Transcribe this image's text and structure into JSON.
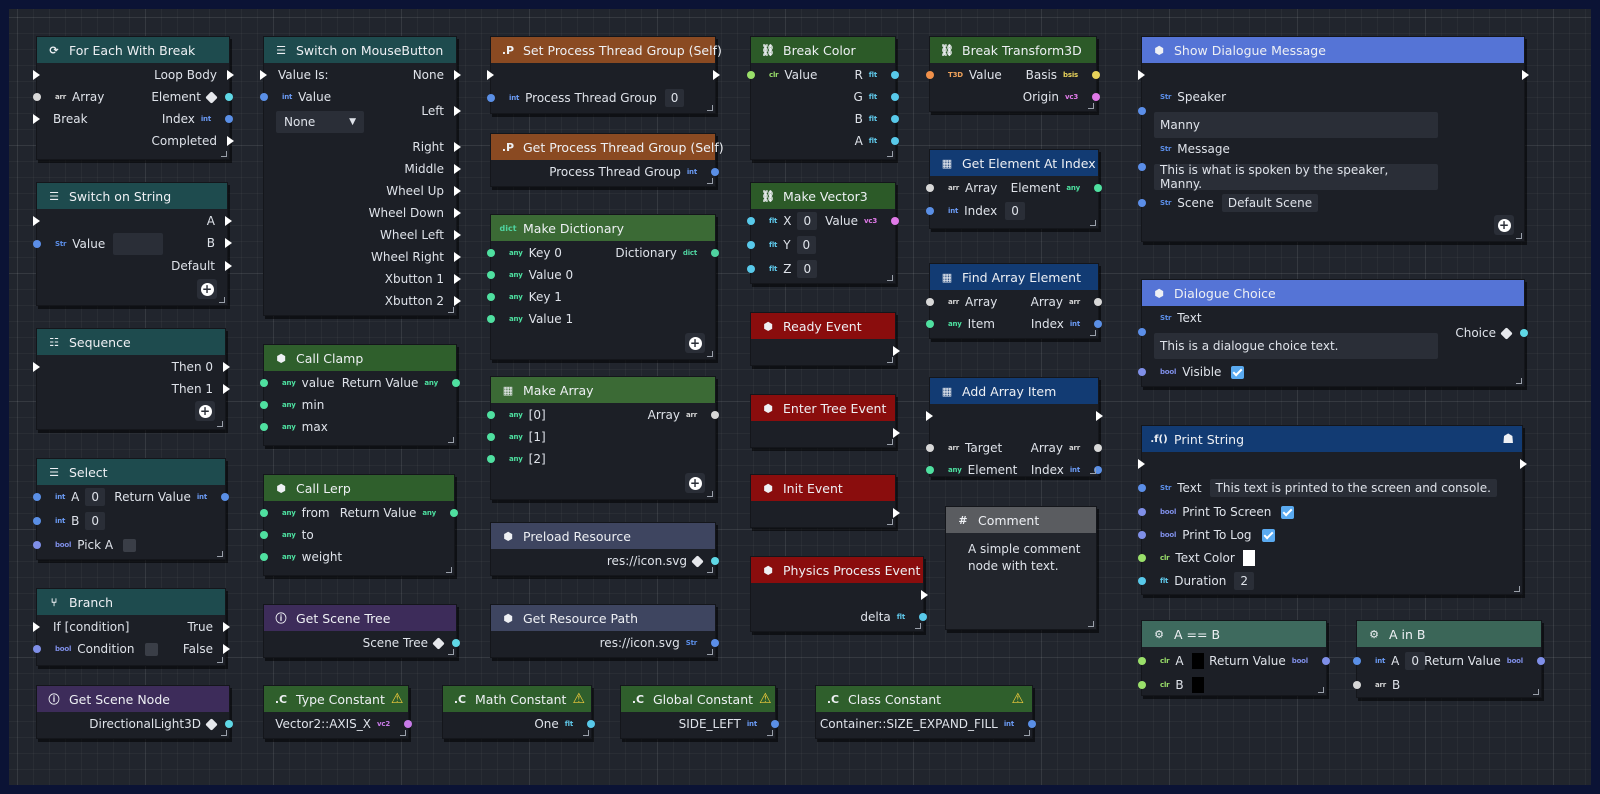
{
  "for_each": {
    "title": "For Each With Break",
    "loop_body": "Loop Body",
    "array": "Array",
    "element": "Element",
    "break": "Break",
    "index": "Index",
    "completed": "Completed"
  },
  "switch_string": {
    "title": "Switch on String",
    "a": "A",
    "value": "Value",
    "b": "B",
    "default": "Default"
  },
  "sequence": {
    "title": "Sequence",
    "then0": "Then 0",
    "then1": "Then 1"
  },
  "select": {
    "title": "Select",
    "a": "A",
    "a_val": "0",
    "return": "Return Value",
    "b": "B",
    "b_val": "0",
    "pick": "Pick A"
  },
  "branch": {
    "title": "Branch",
    "if": "If [condition]",
    "true": "True",
    "condition": "Condition",
    "false": "False"
  },
  "get_scene_node": {
    "title": "Get Scene Node",
    "value": "DirectionalLight3D"
  },
  "switch_mouse": {
    "title": "Switch on MouseButton",
    "value_is": "Value Is:",
    "none_out": "None",
    "value": "Value",
    "left": "Left",
    "dropdown": "None",
    "right": "Right",
    "middle": "Middle",
    "wheel_up": "Wheel Up",
    "wheel_down": "Wheel Down",
    "wheel_left": "Wheel Left",
    "wheel_right": "Wheel Right",
    "xb1": "Xbutton 1",
    "xb2": "Xbutton 2"
  },
  "call_clamp": {
    "title": "Call Clamp",
    "value": "value",
    "return": "Return Value",
    "min": "min",
    "max": "max"
  },
  "call_lerp": {
    "title": "Call Lerp",
    "from": "from",
    "return": "Return Value",
    "to": "to",
    "weight": "weight"
  },
  "get_scene_tree": {
    "title": "Get Scene Tree",
    "out": "Scene Tree"
  },
  "type_const": {
    "title": "Type Constant",
    "value": "Vector2::AXIS_X"
  },
  "set_ptg": {
    "title": "Set Process Thread Group (Self)",
    "label": "Process Thread Group",
    "value": "0"
  },
  "get_ptg": {
    "title": "Get Process Thread Group (Self)",
    "out": "Process Thread Group"
  },
  "make_dict": {
    "title": "Make Dictionary",
    "key0": "Key 0",
    "dict": "Dictionary",
    "value0": "Value 0",
    "key1": "Key 1",
    "value1": "Value 1"
  },
  "make_array": {
    "title": "Make Array",
    "i0": "[0]",
    "array": "Array",
    "i1": "[1]",
    "i2": "[2]"
  },
  "preload": {
    "title": "Preload Resource",
    "path": "res://icon.svg"
  },
  "res_path": {
    "title": "Get Resource Path",
    "path": "res://icon.svg"
  },
  "math_const": {
    "title": "Math Constant",
    "value": "One"
  },
  "global_const": {
    "title": "Global Constant",
    "value": "SIDE_LEFT"
  },
  "break_color": {
    "title": "Break Color",
    "value": "Value",
    "r": "R",
    "g": "G",
    "b": "B",
    "a": "A"
  },
  "make_v3": {
    "title": "Make Vector3",
    "x": "X",
    "x_val": "0",
    "value": "Value",
    "y": "Y",
    "y_val": "0",
    "z": "Z",
    "z_val": "0"
  },
  "ready": {
    "title": "Ready Event"
  },
  "enter_tree": {
    "title": "Enter Tree Event"
  },
  "init": {
    "title": "Init Event"
  },
  "physics": {
    "title": "Physics Process Event",
    "delta": "delta"
  },
  "class_const": {
    "title": "Class Constant",
    "value": "Container::SIZE_EXPAND_FILL"
  },
  "break_t3d": {
    "title": "Break Transform3D",
    "value": "Value",
    "basis": "Basis",
    "origin": "Origin"
  },
  "get_elem": {
    "title": "Get Element At Index",
    "array": "Array",
    "element": "Element",
    "index": "Index",
    "index_val": "0"
  },
  "find_elem": {
    "title": "Find Array Element",
    "array": "Array",
    "array_out": "Array",
    "item": "Item",
    "index": "Index"
  },
  "add_item": {
    "title": "Add Array Item",
    "target": "Target",
    "array": "Array",
    "element": "Element",
    "index": "Index"
  },
  "comment": {
    "title": "Comment",
    "text": "A simple comment node with text."
  },
  "dialogue": {
    "title": "Show Dialogue Message",
    "speaker": "Speaker",
    "speaker_val": "Manny",
    "message": "Message",
    "message_val": "This is what is spoken by the speaker, Manny.",
    "scene": "Scene",
    "scene_val": "Default Scene"
  },
  "choice": {
    "title": "Dialogue Choice",
    "text": "Text",
    "choice": "Choice",
    "text_val": "This is a dialogue choice text.",
    "visible": "Visible"
  },
  "print": {
    "title": "Print String",
    "text": "Text",
    "text_val": "This text is printed to the screen and console.",
    "to_screen": "Print To Screen",
    "to_log": "Print To Log",
    "color": "Text Color",
    "duration": "Duration",
    "duration_val": "2"
  },
  "eq": {
    "title": "A == B",
    "a": "A",
    "return": "Return Value",
    "b": "B"
  },
  "in": {
    "title": "A in B",
    "a": "A",
    "a_val": "0",
    "return": "Return Value",
    "b": "B"
  },
  "type_tags": {
    "int": "int",
    "any": "any",
    "str": "Str",
    "bool": "bool",
    "flt": "flt",
    "arr": "arr",
    "clr": "clr",
    "dict": "dict",
    "v3": "vc3",
    "v2": "vc2",
    "t3d": "T3D",
    "basis": "bsis"
  },
  "colors": {
    "header_teal": "#1e4b4e",
    "header_orange": "#8a4a22",
    "header_green": "#2f5f2c",
    "header_red": "#8a0d0d",
    "header_purple": "#3d2c5a",
    "header_slate": "#3e4560",
    "header_blue": "#123b73",
    "header_periwinkle": "#5574d6",
    "canvas": "#21252d"
  }
}
